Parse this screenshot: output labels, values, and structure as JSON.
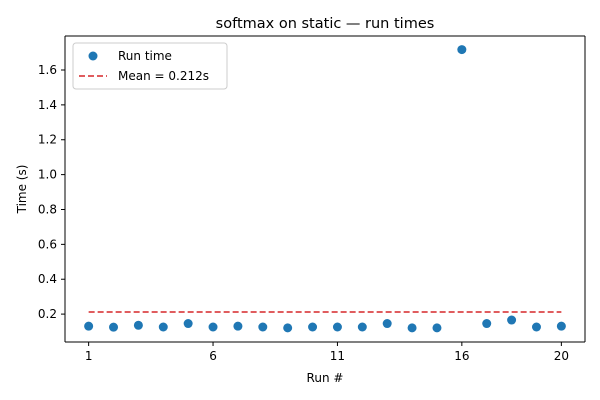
{
  "chart_data": {
    "type": "scatter",
    "title": "softmax on static — run times",
    "xlabel": "Run #",
    "ylabel": "Time (s)",
    "xlim": [
      0.05,
      20.95
    ],
    "ylim": [
      0.04,
      1.795
    ],
    "xticks": [
      1,
      6,
      11,
      16,
      20
    ],
    "yticks": [
      0.2,
      0.4,
      0.6,
      0.8,
      1.0,
      1.2,
      1.4,
      1.6
    ],
    "ytick_labels": [
      "0.2",
      "0.4",
      "0.6",
      "0.8",
      "1.0",
      "1.2",
      "1.4",
      "1.6"
    ],
    "grid": false,
    "legend_position": "upper-left",
    "series": [
      {
        "name": "Run time",
        "color": "#1f77b4",
        "marker": "circle",
        "x": [
          1,
          2,
          3,
          4,
          5,
          6,
          7,
          8,
          9,
          10,
          11,
          12,
          13,
          14,
          15,
          16,
          17,
          18,
          19,
          20
        ],
        "y": [
          0.131,
          0.125,
          0.136,
          0.126,
          0.146,
          0.126,
          0.131,
          0.126,
          0.121,
          0.126,
          0.126,
          0.126,
          0.146,
          0.121,
          0.121,
          1.717,
          0.146,
          0.166,
          0.126,
          0.131
        ]
      }
    ],
    "mean_line": {
      "name": "Mean = 0.212s",
      "value": 0.212,
      "color": "#d62728",
      "style": "dashed",
      "x_range": [
        1,
        20
      ]
    }
  }
}
